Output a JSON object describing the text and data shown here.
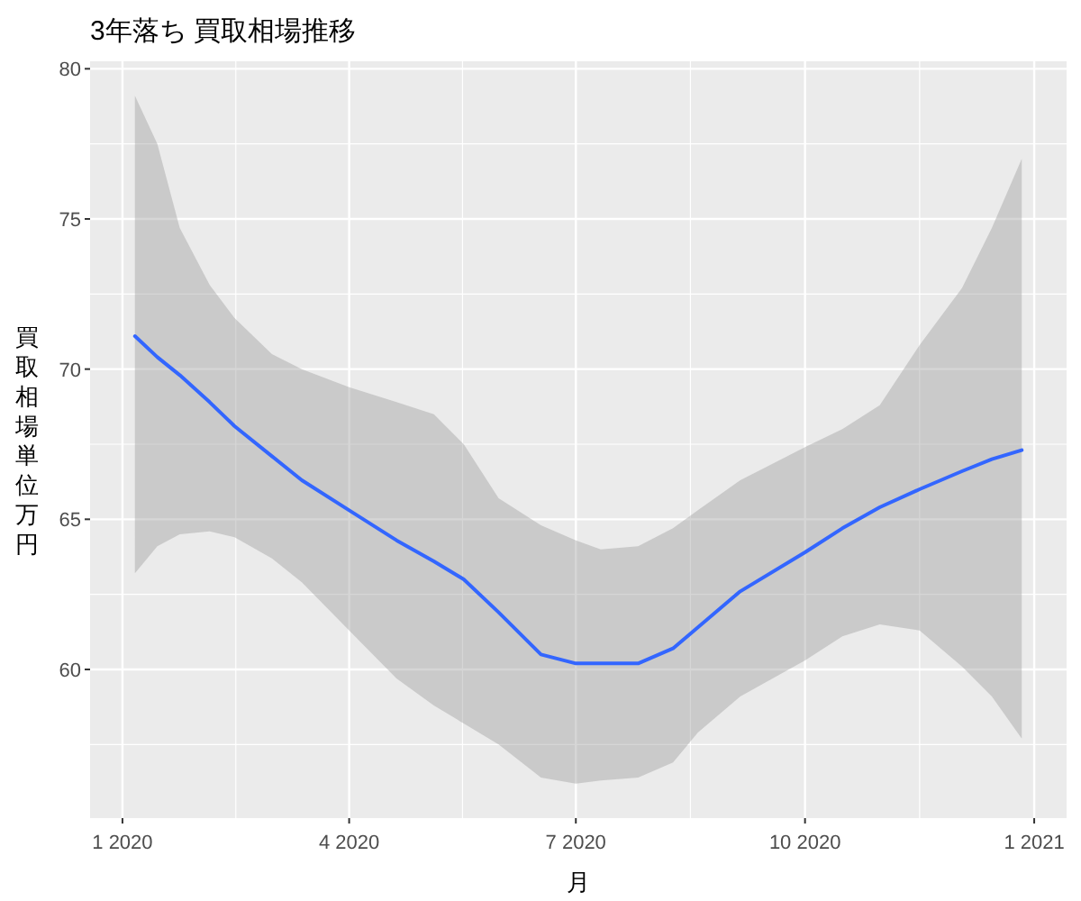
{
  "chart_data": {
    "type": "line",
    "title": "3年落ち 買取相場推移",
    "xlabel": "月",
    "ylabel": "買取相場単位万円",
    "x": [
      "2020-01-06",
      "2020-01-15",
      "2020-01-24",
      "2020-02-05",
      "2020-02-15",
      "2020-03-01",
      "2020-03-13",
      "2020-04-01",
      "2020-04-20",
      "2020-05-05",
      "2020-05-17",
      "2020-05-31",
      "2020-06-17",
      "2020-07-01",
      "2020-07-11",
      "2020-07-26",
      "2020-08-09",
      "2020-08-19",
      "2020-09-05",
      "2020-10-01",
      "2020-10-16",
      "2020-10-31",
      "2020-11-16",
      "2020-12-03",
      "2020-12-15",
      "2020-12-27"
    ],
    "series": [
      {
        "color": "#3366ff",
        "values": [
          71.1,
          70.4,
          69.8,
          68.9,
          68.1,
          67.1,
          66.3,
          65.3,
          64.3,
          63.6,
          63.0,
          61.9,
          60.5,
          60.2,
          60.2,
          60.2,
          60.7,
          61.4,
          62.6,
          63.9,
          64.7,
          65.4,
          66.0,
          66.6,
          67.0,
          67.3
        ],
        "upper": [
          79.1,
          77.5,
          74.7,
          72.8,
          71.7,
          70.5,
          70.0,
          69.4,
          68.9,
          68.5,
          67.5,
          65.7,
          64.8,
          64.3,
          64.0,
          64.1,
          64.7,
          65.3,
          66.3,
          67.4,
          68.0,
          68.8,
          70.8,
          72.7,
          74.7,
          77.0
        ],
        "lower": [
          63.2,
          64.1,
          64.5,
          64.6,
          64.4,
          63.7,
          62.9,
          61.3,
          59.7,
          58.8,
          58.2,
          57.5,
          56.4,
          56.2,
          56.3,
          56.4,
          56.9,
          57.9,
          59.1,
          60.3,
          61.1,
          61.5,
          61.3,
          60.1,
          59.1,
          57.7
        ]
      }
    ],
    "xlim": [
      "2019-12-19",
      "2021-01-14"
    ],
    "ylim": [
      55.05,
      80.25
    ],
    "xticks": [
      {
        "value": "2020-01-01",
        "label": "1 2020"
      },
      {
        "value": "2020-04-01",
        "label": "4 2020"
      },
      {
        "value": "2020-07-01",
        "label": "7 2020"
      },
      {
        "value": "2020-10-01",
        "label": "10 2020"
      },
      {
        "value": "2021-01-01",
        "label": "1 2021"
      }
    ],
    "yticks": [
      60,
      65,
      70,
      75,
      80
    ],
    "grid": true,
    "line_style": "solid",
    "marker": "none"
  }
}
